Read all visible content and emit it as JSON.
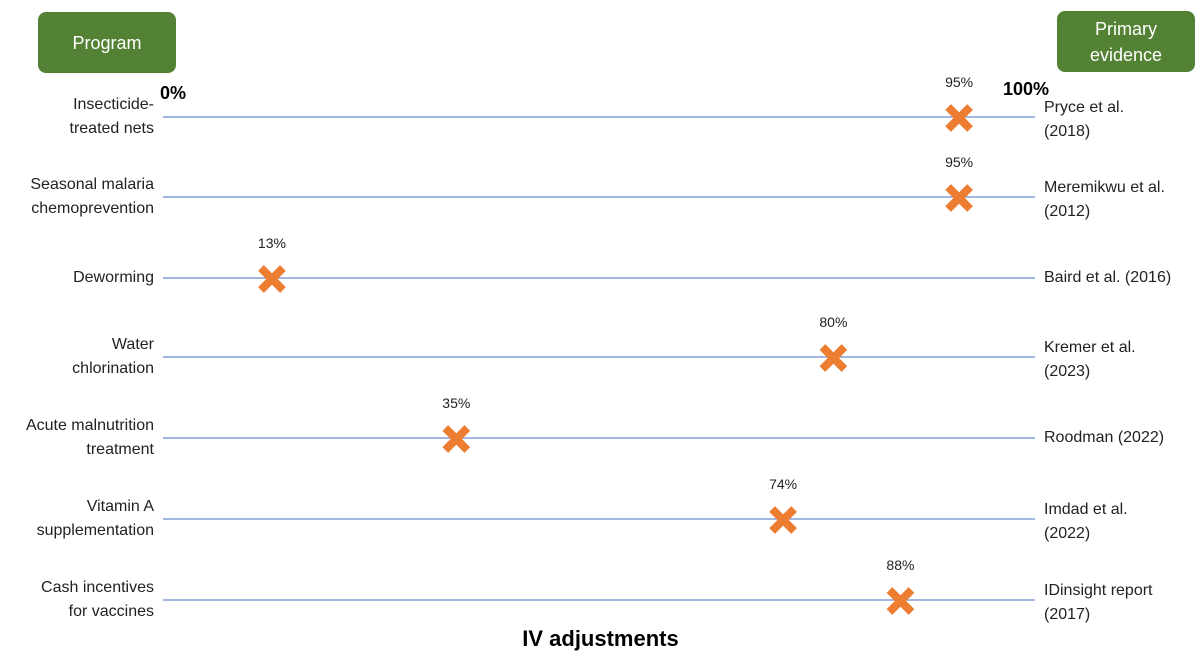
{
  "header": {
    "left_badge": "Program",
    "right_badge": "Primary\nevidence"
  },
  "colors": {
    "badge": "#548235",
    "line": "#4472c4",
    "marker": "#ed7d31"
  },
  "chart_data": {
    "type": "scatter",
    "title": "IV adjustments",
    "xlim": [
      0,
      100
    ],
    "x_axis_labels": {
      "min": "0%",
      "max": "100%"
    },
    "marker": "x",
    "grid": false,
    "categories": [
      "Insecticide-\ntreated nets",
      "Seasonal malaria\nchemoprevention",
      "Deworming",
      "Water\nchlorination",
      "Acute malnutrition\ntreatment",
      "Vitamin A\nsupplementation",
      "Cash incentives\nfor vaccines"
    ],
    "values": [
      95,
      95,
      13,
      80,
      35,
      74,
      88
    ],
    "value_labels": [
      "95%",
      "95%",
      "13%",
      "80%",
      "35%",
      "74%",
      "88%"
    ],
    "evidence": [
      "Pryce et al.\n(2018)",
      "Meremikwu et al.\n(2012)",
      "Baird et al. (2016)",
      "Kremer et al.\n(2023)",
      "Roodman (2022)",
      "Imdad et al.\n(2022)",
      "IDinsight report\n(2017)"
    ]
  }
}
